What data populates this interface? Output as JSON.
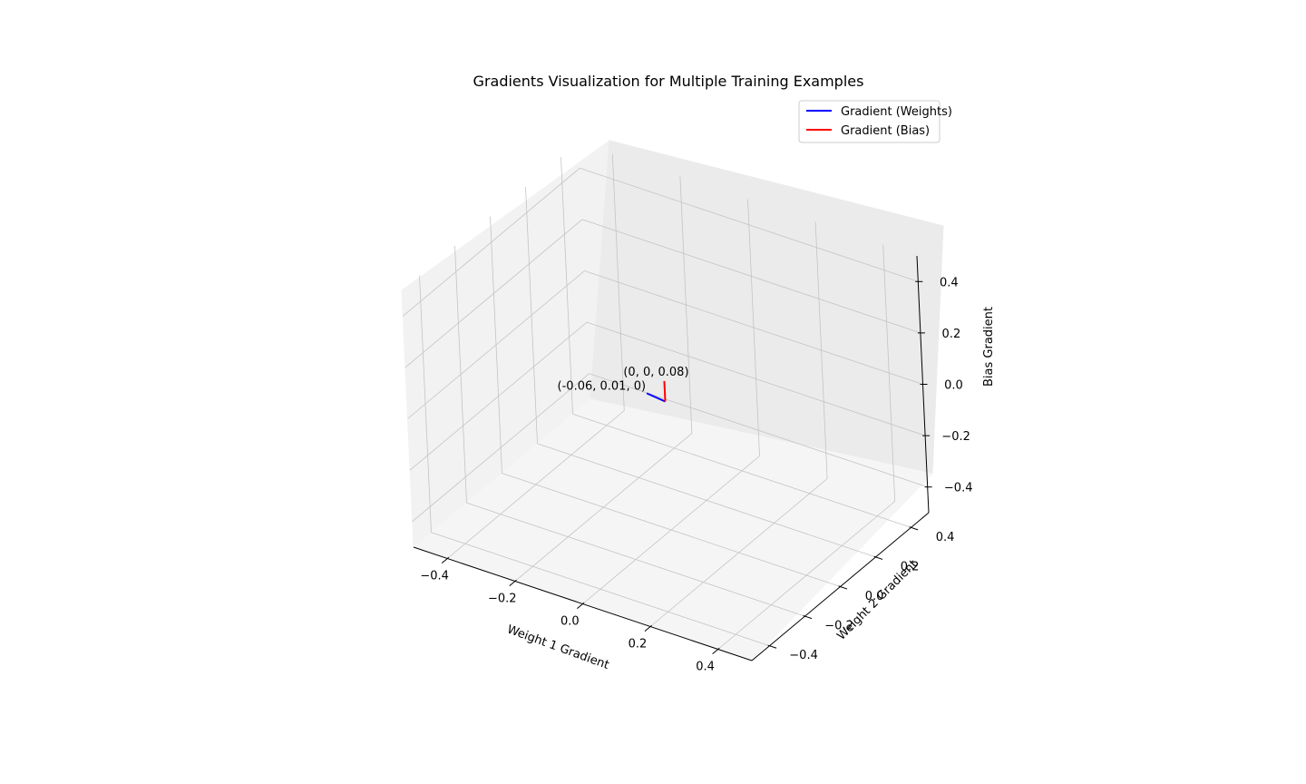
{
  "chart_data": {
    "type": "line3d",
    "title": "Gradients Visualization for Multiple Training Examples",
    "xlabel": "Weight 1 Gradient",
    "ylabel": "Weight 2 Gradient",
    "zlabel": "Bias Gradient",
    "xlim": [
      -0.5,
      0.5
    ],
    "ylim": [
      -0.5,
      0.5
    ],
    "zlim": [
      -0.5,
      0.5
    ],
    "xticks": [
      "−0.4",
      "−0.2",
      "0.0",
      "0.2",
      "0.4"
    ],
    "yticks": [
      "−0.4",
      "−0.2",
      "0.0",
      "0.2",
      "0.4"
    ],
    "zticks": [
      "−0.4",
      "−0.2",
      "0.0",
      "0.2",
      "0.4"
    ],
    "grid": true,
    "legend_position": "upper-right",
    "series": [
      {
        "name": "Gradient (Weights)",
        "color": "#0000ff",
        "points": [
          [
            0,
            0,
            0
          ],
          [
            -0.06,
            0.01,
            0
          ]
        ],
        "annotation": "(-0.06, 0.01, 0)"
      },
      {
        "name": "Gradient (Bias)",
        "color": "#ff0000",
        "points": [
          [
            0,
            0,
            0
          ],
          [
            0,
            0,
            0.08
          ]
        ],
        "annotation": "(0, 0, 0.08)"
      }
    ]
  }
}
